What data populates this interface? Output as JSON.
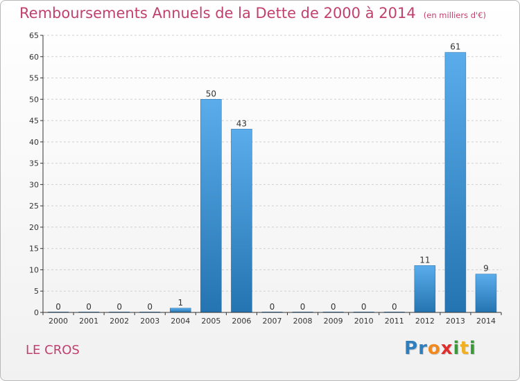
{
  "header": {
    "title": "Remboursements Annuels de la Dette de 2000 à 2014",
    "subtitle": "(en milliers d'€)"
  },
  "footer": {
    "commune": "LE CROS",
    "logo_letters": [
      {
        "ch": "P",
        "color": "#2f7fbf"
      },
      {
        "ch": "r",
        "color": "#2f7fbf"
      },
      {
        "ch": "o",
        "color": "#f08a1e"
      },
      {
        "ch": "x",
        "color": "#e02d2d"
      },
      {
        "ch": "i",
        "color": "#3a9a3a"
      },
      {
        "ch": "t",
        "color": "#f0b020"
      },
      {
        "ch": "i",
        "color": "#3a9a3a"
      }
    ]
  },
  "colors": {
    "title": "#c0406e",
    "bar_top": "#5aacea",
    "bar_bottom": "#2574b2",
    "grid": "#d0d0d0",
    "axis": "#333333"
  },
  "chart_data": {
    "type": "bar",
    "categories": [
      "2000",
      "2001",
      "2002",
      "2003",
      "2004",
      "2005",
      "2006",
      "2007",
      "2008",
      "2009",
      "2010",
      "2011",
      "2012",
      "2013",
      "2014"
    ],
    "values": [
      0,
      0,
      0,
      0,
      1,
      50,
      43,
      0,
      0,
      0,
      0,
      0,
      11,
      61,
      9
    ],
    "ylim": [
      0,
      65
    ],
    "yticks": [
      0,
      5,
      10,
      15,
      20,
      25,
      30,
      35,
      40,
      45,
      50,
      55,
      60,
      65
    ],
    "grid": "horizontal dashed",
    "legend": "none"
  }
}
